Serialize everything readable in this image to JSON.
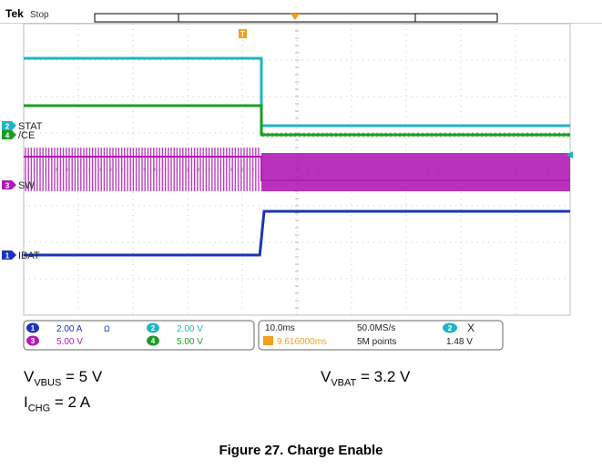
{
  "scope": {
    "brand": "Tek",
    "state": "Stop",
    "trigger_marker": "T",
    "channels": [
      {
        "id": "2",
        "name": "STAT",
        "color": "#1fb5c3",
        "scale": "2.00 V",
        "suffix": ""
      },
      {
        "id": "4",
        "name": "/CE",
        "color": "#1d9b25",
        "scale": "5.00 V",
        "suffix": ""
      },
      {
        "id": "3",
        "name": "SW",
        "color": "#b01cb5",
        "scale": "5.00 V",
        "suffix": ""
      },
      {
        "id": "1",
        "name": "IBAT",
        "color": "#1b34b8",
        "scale": "2.00 A",
        "suffix": "Ω"
      }
    ],
    "timebase": "10.0ms",
    "trigger_offset": "9.616000ms",
    "sample_rate": "50.0MS/s",
    "record_length": "5M points",
    "trigger_channel": "2",
    "trigger_edge": "X",
    "trigger_level": "1.48 V"
  },
  "chart_data": {
    "type": "line",
    "x_unit": "div",
    "xlim": [
      0,
      10
    ],
    "ylim": [
      -4,
      4
    ],
    "transition_x": 4.35,
    "series": [
      {
        "name": "STAT",
        "x": [
          0,
          4.35,
          4.35,
          10
        ],
        "y": [
          3.05,
          3.05,
          1.2,
          1.2
        ]
      },
      {
        "name": "/CE",
        "x": [
          0,
          4.35,
          4.35,
          10
        ],
        "y": [
          1.75,
          1.75,
          0.95,
          0.95
        ]
      },
      {
        "name": "SW",
        "x": [
          0,
          4.35,
          4.35,
          10
        ],
        "y": [
          0.35,
          0.35,
          -0.3,
          -0.3
        ]
      },
      {
        "name": "IBAT",
        "x": [
          0,
          4.32,
          4.4,
          10
        ],
        "y": [
          -2.35,
          -2.35,
          -1.15,
          -1.15
        ]
      }
    ]
  },
  "conditions": {
    "vbus": {
      "main": "V",
      "sub": "VBUS",
      "value": " = 5 V"
    },
    "vbat": {
      "main": "V",
      "sub": "VBAT",
      "value": " = 3.2 V"
    },
    "ichg": {
      "main": "I",
      "sub": "CHG",
      "value": " = 2 A"
    }
  },
  "figure_caption": "Figure 27. Charge Enable"
}
